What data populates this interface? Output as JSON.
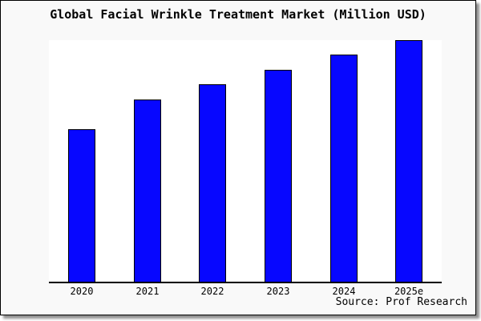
{
  "frame": {
    "title": "Global Facial Wrinkle Treatment Market (Million USD)",
    "source": "Source: Prof Research"
  },
  "colors": {
    "bar_fill": "#0707ff",
    "bar_border": "#000000",
    "plot_background": "#ffffff",
    "frame_background": "#f9f9f9",
    "frame_border": "#000000",
    "axis_line": "#000000",
    "text": "#000000",
    "shadow": "#909090"
  },
  "chart_data": {
    "type": "bar",
    "title": "Global Facial Wrinkle Treatment Market (Million USD)",
    "categories": [
      "2020",
      "2021",
      "2022",
      "2023",
      "2024",
      "2025e"
    ],
    "values": [
      63.1,
      75.4,
      81.7,
      87.7,
      94.0,
      100.0
    ],
    "values_note": "y-axis has no scale or tick labels; values estimated as percent of tallest bar (2025e = 100)",
    "xlabel": "",
    "ylabel": "",
    "ylim": [
      0,
      100
    ],
    "grid": false,
    "legend": false,
    "source": "Source: Prof Research"
  }
}
